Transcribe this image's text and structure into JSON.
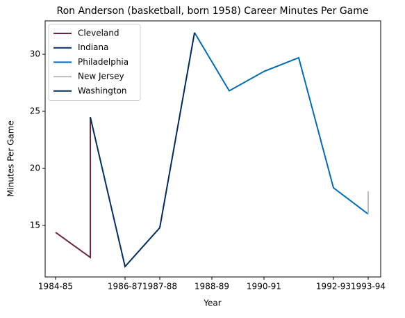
{
  "chart_data": {
    "type": "line",
    "title": "Ron Anderson (basketball, born 1958) Career Minutes Per Game",
    "xlabel": "Year",
    "ylabel": "Minutes Per Game",
    "xlim": [
      -0.3,
      9.36
    ],
    "ylim": [
      10.49,
      32.93
    ],
    "xticks": [
      {
        "value": 0,
        "label": "1984-85"
      },
      {
        "value": 2,
        "label": "1986-87"
      },
      {
        "value": 3,
        "label": "1987-88"
      },
      {
        "value": 4.5,
        "label": "1988-89"
      },
      {
        "value": 6,
        "label": "1990-91"
      },
      {
        "value": 8,
        "label": "1992-93"
      },
      {
        "value": 9,
        "label": "1993-94"
      }
    ],
    "yticks": [
      15,
      20,
      25,
      30
    ],
    "legend": "upper left",
    "series": [
      {
        "name": "Cleveland",
        "color": "#6f263d",
        "x": [
          0,
          1,
          1
        ],
        "values": [
          14.4,
          12.2,
          24.5
        ]
      },
      {
        "name": "Indiana",
        "color": "#002d62",
        "x": [
          1,
          2,
          3
        ],
        "values": [
          24.5,
          11.4,
          14.8
        ]
      },
      {
        "name": "Philadelphia",
        "color": "#006bb6",
        "x": [
          4,
          5,
          6,
          7,
          8,
          9
        ],
        "values": [
          31.9,
          26.8,
          28.5,
          29.7,
          18.3,
          16.0
        ]
      },
      {
        "name": "New Jersey",
        "color": "#bbbbbb",
        "x": [
          9,
          9
        ],
        "values": [
          16.0,
          18.0
        ]
      },
      {
        "name": "Washington",
        "color": "#002b5c",
        "x": [
          3,
          4
        ],
        "values": [
          14.8,
          31.9
        ]
      }
    ]
  }
}
